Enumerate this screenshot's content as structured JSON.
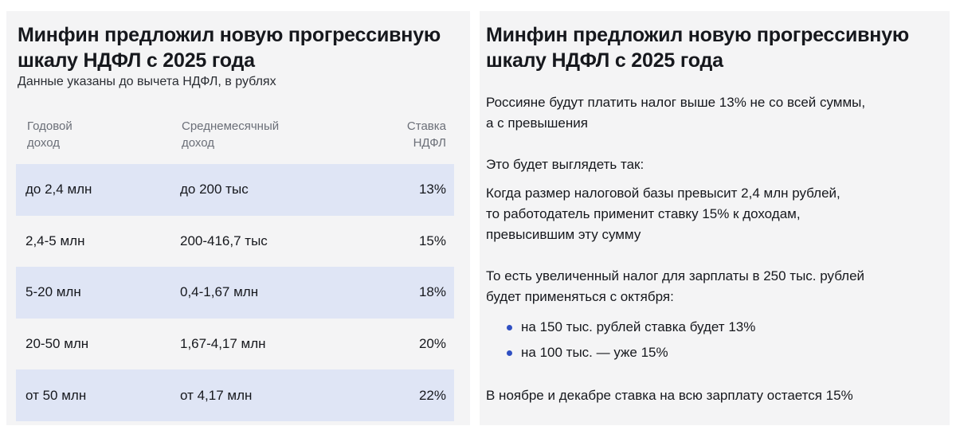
{
  "left_card": {
    "title_line1": "Минфин предложил новую прогрессивную",
    "title_line2": "шкалу НДФЛ с 2025 года",
    "subtitle": "Данные указаны до вычета НДФЛ, в рублях",
    "columns": {
      "income_line1": "Годовой",
      "income_line2": "доход",
      "monthly_line1": "Среднемесячный",
      "monthly_line2": "доход",
      "rate_line1": "Ставка",
      "rate_line2": "НДФЛ"
    },
    "rows": [
      {
        "income": "до 2,4 млн",
        "monthly": "до 200 тыс",
        "rate": "13%"
      },
      {
        "income": "2,4-5 млн",
        "monthly": "200-416,7 тыс",
        "rate": "15%"
      },
      {
        "income": "5-20 млн",
        "monthly": "0,4-1,67 млн",
        "rate": "18%"
      },
      {
        "income": "20-50 млн",
        "monthly": "1,67-4,17 млн",
        "rate": "20%"
      },
      {
        "income": "от 50 млн",
        "monthly": "от 4,17 млн",
        "rate": "22%"
      }
    ]
  },
  "right_card": {
    "title_line1": "Минфин предложил новую прогрессивную",
    "title_line2": "шкалу НДФЛ с 2025 года",
    "p1_line1": "Россияне будут платить налог выше 13% не со всей суммы,",
    "p1_line2": "а с превышения",
    "p2": "Это будет выглядеть так:",
    "p3_line1": "Когда размер налоговой базы превысит 2,4 млн рублей,",
    "p3_line2": "то работодатель применит ставку 15% к доходам,",
    "p3_line3": "превысившим эту сумму",
    "p4_line1": "То есть увеличенный налог для зарплаты в 250 тыс. рублей",
    "p4_line2": "будет применяться с октября:",
    "bullets": [
      "на 150 тыс. рублей ставка будет 13%",
      "на 100 тыс. — уже 15%"
    ],
    "p5": "В ноябре и декабре ставка на всю зарплату остается 15%"
  },
  "colors": {
    "row_shade": "#dfe5f5",
    "bullet_dot": "#2f4fc2",
    "card_bg": "#f4f4f5"
  }
}
